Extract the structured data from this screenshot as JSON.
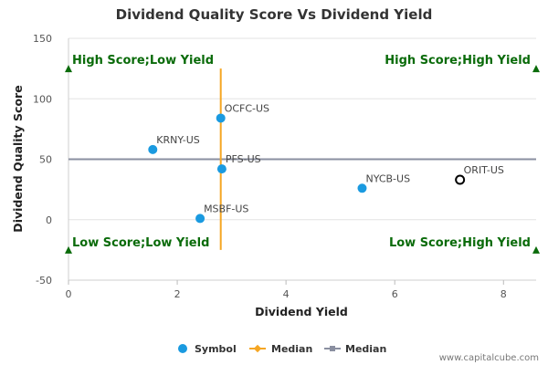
{
  "colors": {
    "symbol": "#1a9ae0",
    "median_vertical": "#f5a623",
    "median_horizontal": "#8a8fa0",
    "quadrant_text": "#0a6b0a",
    "marker": "#0a6b0a",
    "highlight_edge": "#000000"
  },
  "chart_data": {
    "type": "scatter",
    "title": "Dividend Quality Score Vs Dividend Yield",
    "xlabel": "Dividend Yield",
    "ylabel": "Dividend Quality Score",
    "xlim": [
      0,
      8.6
    ],
    "ylim": [
      -50,
      150
    ],
    "x_ticks": [
      "0",
      "2",
      "4",
      "6",
      "8"
    ],
    "x_tick_values": [
      0,
      2,
      4,
      6,
      8
    ],
    "y_ticks": [
      "150",
      "100",
      "50",
      "0",
      "-50"
    ],
    "y_tick_values": [
      150,
      100,
      50,
      0,
      -50
    ],
    "points": [
      {
        "label": "OCFC-US",
        "x": 2.8,
        "y": 84
      },
      {
        "label": "KRNY-US",
        "x": 1.55,
        "y": 58
      },
      {
        "label": "PFS-US",
        "x": 2.82,
        "y": 42
      },
      {
        "label": "MSBF-US",
        "x": 2.42,
        "y": 1
      },
      {
        "label": "NYCB-US",
        "x": 5.4,
        "y": 26
      },
      {
        "label": "ORIT-US",
        "x": 7.2,
        "y": 33,
        "highlight": true
      }
    ],
    "median_x": 2.8,
    "median_x_range": [
      -25,
      125
    ],
    "median_y": 50,
    "quadrants": {
      "top_left": "High Score;Low Yield",
      "top_right": "High Score;High Yield",
      "bottom_left": "Low Score;Low Yield",
      "bottom_right": "Low Score;High Yield"
    },
    "quadrant_markers_y": [
      125,
      -25
    ],
    "legend": [
      {
        "label": "Symbol",
        "kind": "dot"
      },
      {
        "label": "Median",
        "kind": "line-diamond"
      },
      {
        "label": "Median",
        "kind": "line-square"
      }
    ],
    "legend_position": "bottom-center"
  },
  "credit": "www.capitalcube.com"
}
